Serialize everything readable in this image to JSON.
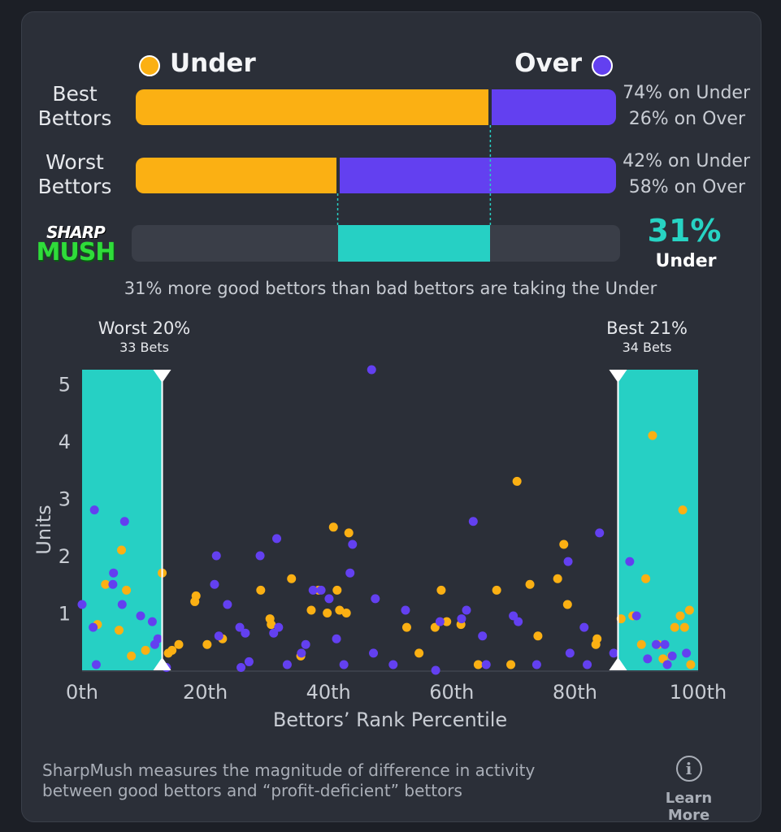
{
  "legend": {
    "under_label": "Under",
    "over_label": "Over"
  },
  "colors": {
    "under": "#fbb013",
    "over": "#6340f0",
    "teal": "#26d0c4",
    "track": "#3a3e48"
  },
  "rows": [
    {
      "label_line1": "Best",
      "label_line2": "Bettors",
      "under_pct": 74,
      "over_pct": 26,
      "under_text": "74% on Under",
      "over_text": "26% on Over"
    },
    {
      "label_line1": "Worst",
      "label_line2": "Bettors",
      "under_pct": 42,
      "over_pct": 58,
      "under_text": "42% on Under",
      "over_text": "58% on Over"
    }
  ],
  "logo": {
    "line1": "SHARP",
    "line2": "MUSH"
  },
  "difference": {
    "value": "31%",
    "side": "Under",
    "range_start_pct": 42,
    "range_end_pct": 74
  },
  "summary_text": "31% more good bettors than bad bettors are taking the Under",
  "brackets": {
    "worst": {
      "label": "Worst 20%",
      "count": "33 Bets",
      "percentile": 13
    },
    "best": {
      "label": "Best 21%",
      "count": "34 Bets",
      "percentile": 87
    }
  },
  "chart_data": {
    "type": "scatter",
    "title": "",
    "xlabel": "Bettors’ Rank Percentile",
    "ylabel": "Units",
    "xlim": [
      0,
      100
    ],
    "ylim": [
      0,
      5.25
    ],
    "xticks": [
      "0th",
      "20th",
      "40th",
      "60th",
      "80th",
      "100th"
    ],
    "yticks": [
      "1",
      "2",
      "3",
      "4",
      "5"
    ],
    "series": [
      {
        "name": "Under",
        "color": "#fbb013",
        "points": [
          [
            2.5,
            0.8
          ],
          [
            3.8,
            1.5
          ],
          [
            6,
            0.7
          ],
          [
            6.4,
            2.1
          ],
          [
            7.2,
            1.4
          ],
          [
            8,
            0.25
          ],
          [
            10.3,
            0.35
          ],
          [
            13,
            1.7
          ],
          [
            14,
            0.3
          ],
          [
            14.6,
            0.35
          ],
          [
            15.7,
            0.45
          ],
          [
            18.3,
            1.2
          ],
          [
            18.5,
            1.3
          ],
          [
            20.3,
            0.45
          ],
          [
            22.8,
            0.55
          ],
          [
            29,
            1.4
          ],
          [
            30.5,
            0.9
          ],
          [
            30.7,
            0.8
          ],
          [
            34,
            1.6
          ],
          [
            35.5,
            0.25
          ],
          [
            37.2,
            1.05
          ],
          [
            38.4,
            1.4
          ],
          [
            39.8,
            1.0
          ],
          [
            40.8,
            2.5
          ],
          [
            41.4,
            1.4
          ],
          [
            41.8,
            1.05
          ],
          [
            43.3,
            2.4
          ],
          [
            42.9,
            1.0
          ],
          [
            52.7,
            0.75
          ],
          [
            54.7,
            0.3
          ],
          [
            57.3,
            0.75
          ],
          [
            58.3,
            1.4
          ],
          [
            59.2,
            0.85
          ],
          [
            61.5,
            0.8
          ],
          [
            64.3,
            0.1
          ],
          [
            67.3,
            1.4
          ],
          [
            69.6,
            0.1
          ],
          [
            70.6,
            3.3
          ],
          [
            72.7,
            1.5
          ],
          [
            74,
            0.6
          ],
          [
            77.2,
            1.6
          ],
          [
            78.2,
            2.2
          ],
          [
            78.8,
            1.15
          ],
          [
            83.4,
            0.45
          ],
          [
            83.6,
            0.55
          ],
          [
            87.5,
            0.9
          ],
          [
            89.4,
            0.95
          ],
          [
            90.8,
            0.45
          ],
          [
            91.5,
            1.6
          ],
          [
            92.6,
            4.1
          ],
          [
            93.5,
            0.45
          ],
          [
            94.3,
            0.2
          ],
          [
            95.7,
            0.25
          ],
          [
            97.1,
            0.95
          ],
          [
            97.5,
            2.8
          ],
          [
            97.8,
            0.75
          ],
          [
            98.6,
            1.05
          ],
          [
            98.8,
            0.1
          ],
          [
            96.2,
            0.75
          ]
        ]
      },
      {
        "name": "Over",
        "color": "#6340f0",
        "points": [
          [
            0,
            1.15
          ],
          [
            1.8,
            0.75
          ],
          [
            2,
            2.8
          ],
          [
            2.3,
            0.1
          ],
          [
            5,
            1.5
          ],
          [
            5.1,
            1.7
          ],
          [
            6.5,
            1.15
          ],
          [
            6.9,
            2.6
          ],
          [
            9.5,
            0.95
          ],
          [
            11.4,
            0.85
          ],
          [
            11.8,
            0.45
          ],
          [
            12.3,
            0.55
          ],
          [
            13.7,
            0.05
          ],
          [
            21.5,
            1.5
          ],
          [
            21.8,
            2.0
          ],
          [
            22.2,
            0.6
          ],
          [
            23.6,
            1.15
          ],
          [
            25.6,
            0.75
          ],
          [
            25.8,
            0.05
          ],
          [
            26.5,
            0.65
          ],
          [
            27.1,
            0.15
          ],
          [
            28.9,
            2.0
          ],
          [
            31.1,
            0.65
          ],
          [
            31.6,
            2.3
          ],
          [
            31.9,
            0.75
          ],
          [
            33.3,
            0.1
          ],
          [
            35.6,
            0.3
          ],
          [
            36.3,
            0.45
          ],
          [
            37.5,
            1.4
          ],
          [
            38.8,
            1.4
          ],
          [
            40.1,
            1.25
          ],
          [
            41.3,
            0.55
          ],
          [
            42.5,
            0.1
          ],
          [
            43.5,
            1.7
          ],
          [
            43.9,
            2.2
          ],
          [
            47,
            5.25
          ],
          [
            47.3,
            0.3
          ],
          [
            47.6,
            1.25
          ],
          [
            50.5,
            0.1
          ],
          [
            52.5,
            1.05
          ],
          [
            57.4,
            0.0
          ],
          [
            58.1,
            0.85
          ],
          [
            61.6,
            0.9
          ],
          [
            62.4,
            1.05
          ],
          [
            63.5,
            2.6
          ],
          [
            65,
            0.6
          ],
          [
            65.6,
            0.1
          ],
          [
            70,
            0.95
          ],
          [
            70.8,
            0.85
          ],
          [
            73.8,
            0.1
          ],
          [
            78.9,
            1.9
          ],
          [
            79.2,
            0.3
          ],
          [
            81.5,
            0.75
          ],
          [
            82,
            0.1
          ],
          [
            84,
            2.4
          ],
          [
            86.3,
            0.3
          ],
          [
            88.9,
            1.9
          ],
          [
            90,
            0.95
          ],
          [
            91.8,
            0.2
          ],
          [
            93.2,
            0.45
          ],
          [
            94.6,
            0.45
          ],
          [
            95,
            0.1
          ],
          [
            95.8,
            0.25
          ],
          [
            98.1,
            0.3
          ]
        ]
      }
    ]
  },
  "footer": {
    "line1": "SharpMush measures the magnitude of difference in activity",
    "line2": "between good bettors and “profit-deficient” bettors",
    "learn_more": "Learn More",
    "info_glyph": "i"
  }
}
